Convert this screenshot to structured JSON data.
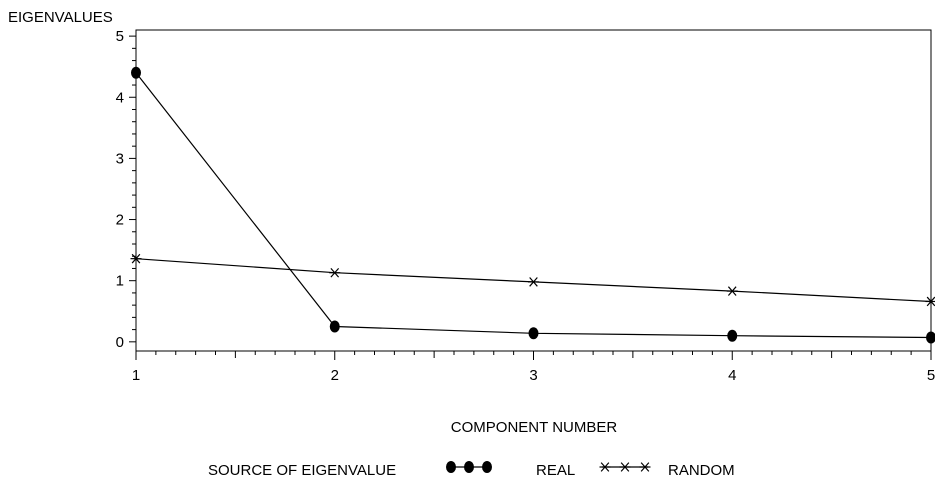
{
  "chart_data": {
    "type": "line",
    "ylabel": "EIGENVALUES",
    "xlabel": "COMPONENT NUMBER",
    "x": [
      1,
      2,
      3,
      4,
      5
    ],
    "xlim": [
      1,
      5
    ],
    "ylim": [
      -0.15,
      5.1
    ],
    "x_ticks": [
      "1",
      "2",
      "3",
      "4",
      "5"
    ],
    "y_ticks": [
      "0",
      "1",
      "2",
      "3",
      "4",
      "5"
    ],
    "grid": false,
    "legend_title": "SOURCE OF EIGENVALUE",
    "legend_placement": "bottom",
    "series": [
      {
        "name": "REAL",
        "marker": "filled-circle",
        "values": [
          4.4,
          0.25,
          0.14,
          0.1,
          0.07
        ],
        "color": "#000000"
      },
      {
        "name": "RANDOM",
        "marker": "asterisk",
        "values": [
          1.36,
          1.13,
          0.98,
          0.83,
          0.66
        ],
        "color": "#000000"
      }
    ]
  }
}
